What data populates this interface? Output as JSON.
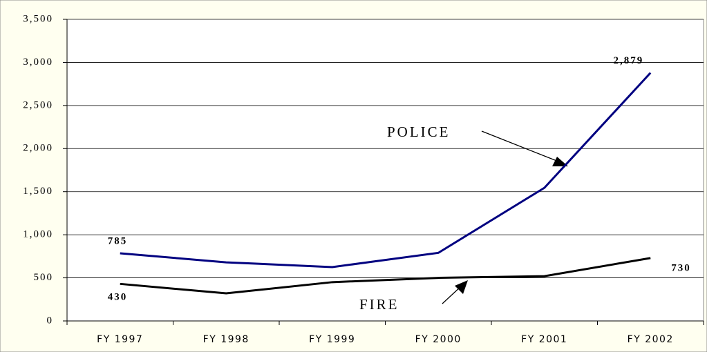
{
  "chart_data": {
    "type": "line",
    "categories": [
      "FY 1997",
      "FY 1998",
      "FY 1999",
      "FY 2000",
      "FY 2001",
      "FY 2002"
    ],
    "series": [
      {
        "name": "POLICE",
        "color": "#000080",
        "values": [
          785,
          680,
          625,
          790,
          1545,
          2879
        ],
        "value_labels": [
          "785",
          null,
          null,
          null,
          null,
          "2,879"
        ]
      },
      {
        "name": "FIRE",
        "color": "#000000",
        "values": [
          430,
          320,
          450,
          500,
          520,
          730
        ],
        "value_labels": [
          "430",
          null,
          null,
          null,
          null,
          "730"
        ]
      }
    ],
    "ylim": [
      0,
      3500
    ],
    "yticks": [
      0,
      500,
      {
        "value": 1000,
        "label": "1,000"
      },
      {
        "value": 1500,
        "label": "1,500"
      },
      {
        "value": 2000,
        "label": "2,000"
      },
      {
        "value": 2500,
        "label": "2,500"
      },
      {
        "value": 3000,
        "label": "3,000"
      },
      {
        "value": 3500,
        "label": "3,500"
      }
    ],
    "grid": true
  }
}
